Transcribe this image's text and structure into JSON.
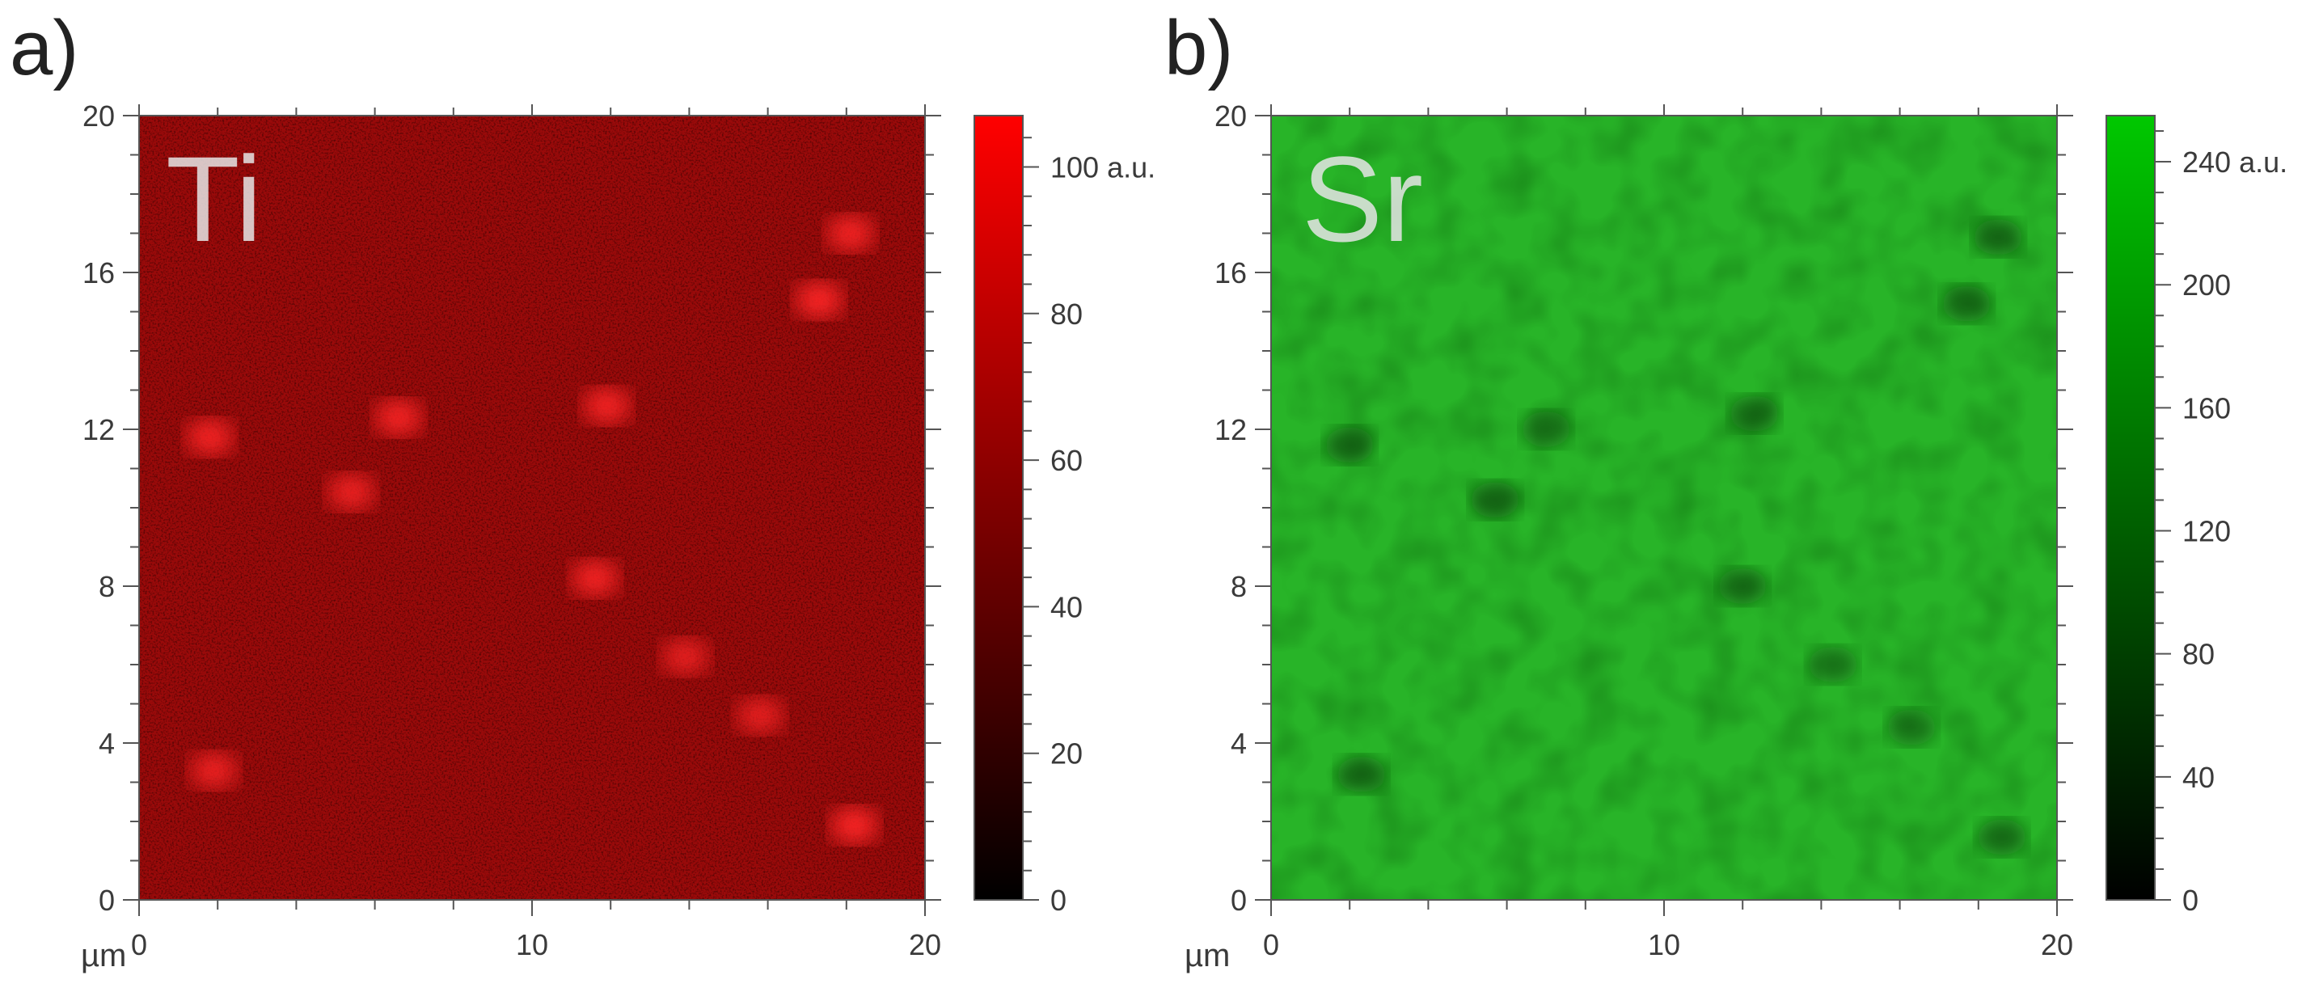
{
  "figure": {
    "panels": [
      {
        "panel_label": "a)",
        "map_label": "Ti",
        "x_unit_label": "µm",
        "colorbar_unit": "a.u.",
        "colorbar_max_color": "#ff0000",
        "background_color": "#9a0a0a",
        "spot_color": "#ff2626"
      },
      {
        "panel_label": "b)",
        "map_label": "Sr",
        "x_unit_label": "µm",
        "colorbar_unit": "a.u.",
        "colorbar_max_color": "#00c800",
        "background_color": "#28b428",
        "spot_color": "#0f4a0f"
      }
    ]
  },
  "chart_data": [
    {
      "type": "heatmap",
      "title": "",
      "xlabel": "µm",
      "ylabel": "",
      "xlim": [
        0,
        20
      ],
      "ylim": [
        0,
        20
      ],
      "x_ticks": [
        0,
        10,
        20
      ],
      "y_ticks": [
        0,
        4,
        8,
        12,
        16,
        20
      ],
      "colorbar": {
        "min": 0,
        "max": 107,
        "ticks": [
          0,
          20,
          40,
          60,
          80,
          100
        ],
        "top_label": "100 a.u.",
        "unit": "a.u."
      },
      "background_level": 55,
      "features": "bright spots",
      "spots": [
        {
          "x": 1.8,
          "y": 11.8,
          "value": 100
        },
        {
          "x": 6.6,
          "y": 12.3,
          "value": 100
        },
        {
          "x": 11.9,
          "y": 12.6,
          "value": 100
        },
        {
          "x": 5.4,
          "y": 10.4,
          "value": 95
        },
        {
          "x": 11.6,
          "y": 8.2,
          "value": 100
        },
        {
          "x": 13.9,
          "y": 6.2,
          "value": 90
        },
        {
          "x": 15.8,
          "y": 4.7,
          "value": 90
        },
        {
          "x": 1.9,
          "y": 3.3,
          "value": 95
        },
        {
          "x": 18.2,
          "y": 1.9,
          "value": 105
        },
        {
          "x": 17.3,
          "y": 15.3,
          "value": 105
        },
        {
          "x": 18.1,
          "y": 17.0,
          "value": 100
        }
      ]
    },
    {
      "type": "heatmap",
      "title": "",
      "xlabel": "µm",
      "ylabel": "",
      "xlim": [
        0,
        20
      ],
      "ylim": [
        0,
        20
      ],
      "x_ticks": [
        0,
        10,
        20
      ],
      "y_ticks": [
        0,
        4,
        8,
        12,
        16,
        20
      ],
      "colorbar": {
        "min": 0,
        "max": 255,
        "ticks": [
          0,
          40,
          80,
          120,
          160,
          200,
          240
        ],
        "top_label": "240 a.u.",
        "unit": "a.u."
      },
      "background_level": 220,
      "features": "dark spots",
      "spots": [
        {
          "x": 2.0,
          "y": 11.6,
          "value": 150
        },
        {
          "x": 7.0,
          "y": 12.0,
          "value": 160
        },
        {
          "x": 12.3,
          "y": 12.4,
          "value": 160
        },
        {
          "x": 5.7,
          "y": 10.2,
          "value": 150
        },
        {
          "x": 12.0,
          "y": 8.0,
          "value": 160
        },
        {
          "x": 14.3,
          "y": 6.0,
          "value": 170
        },
        {
          "x": 16.3,
          "y": 4.4,
          "value": 170
        },
        {
          "x": 2.3,
          "y": 3.2,
          "value": 150
        },
        {
          "x": 18.6,
          "y": 1.6,
          "value": 155
        },
        {
          "x": 17.7,
          "y": 15.2,
          "value": 150
        },
        {
          "x": 18.5,
          "y": 16.9,
          "value": 145
        }
      ]
    }
  ]
}
